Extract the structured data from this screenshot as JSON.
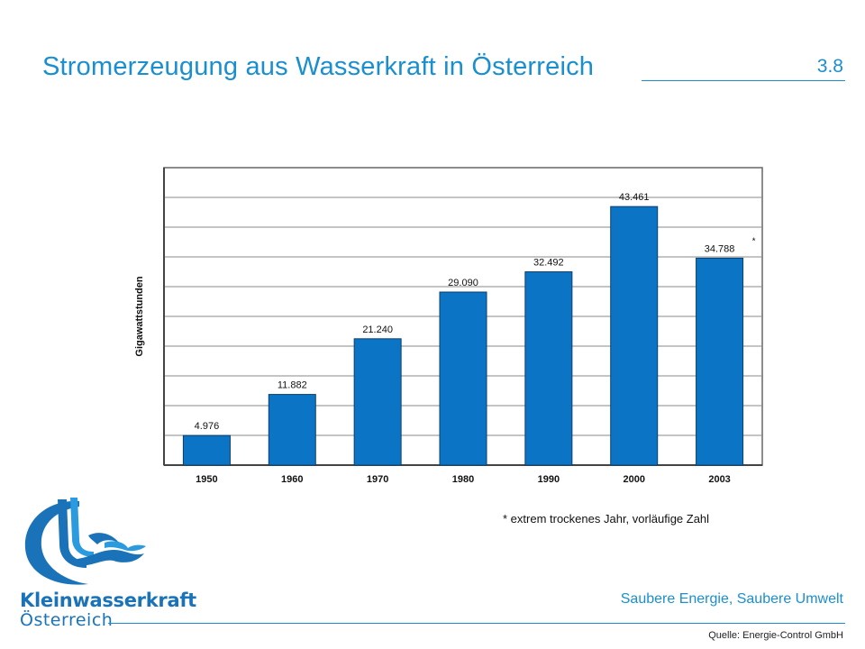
{
  "header": {
    "title": "Stromerzeugung aus Wasserkraft in Österreich",
    "slide_number": "3.8"
  },
  "footer": {
    "slogan": "Saubere Energie, Saubere Umwelt",
    "source": "Quelle: Energie-Control GmbH",
    "footnote": "* extrem trockenes Jahr, vorläufige Zahl"
  },
  "logo": {
    "name": "Kleinwasserkraft",
    "subtitle": "Österreich",
    "colors": {
      "primary": "#1a73b8",
      "light": "#2b9be0"
    }
  },
  "colors": {
    "accent": "#1a8fd0",
    "bar": "#0c74c4"
  },
  "chart_data": {
    "type": "bar",
    "categories": [
      "1950",
      "1960",
      "1970",
      "1980",
      "1990",
      "2000",
      "2003"
    ],
    "values": [
      4976,
      11882,
      21240,
      29090,
      32492,
      43461,
      34788
    ],
    "value_labels": [
      "4.976",
      "11.882",
      "21.240",
      "29.090",
      "32.492",
      "43.461",
      "34.788"
    ],
    "annotations": [
      {
        "category": "2003",
        "text": "*"
      }
    ],
    "title": "",
    "xlabel": "",
    "ylabel": "Gigawattstunden",
    "ylim": [
      0,
      50000
    ],
    "grid": true,
    "legend": "none"
  }
}
